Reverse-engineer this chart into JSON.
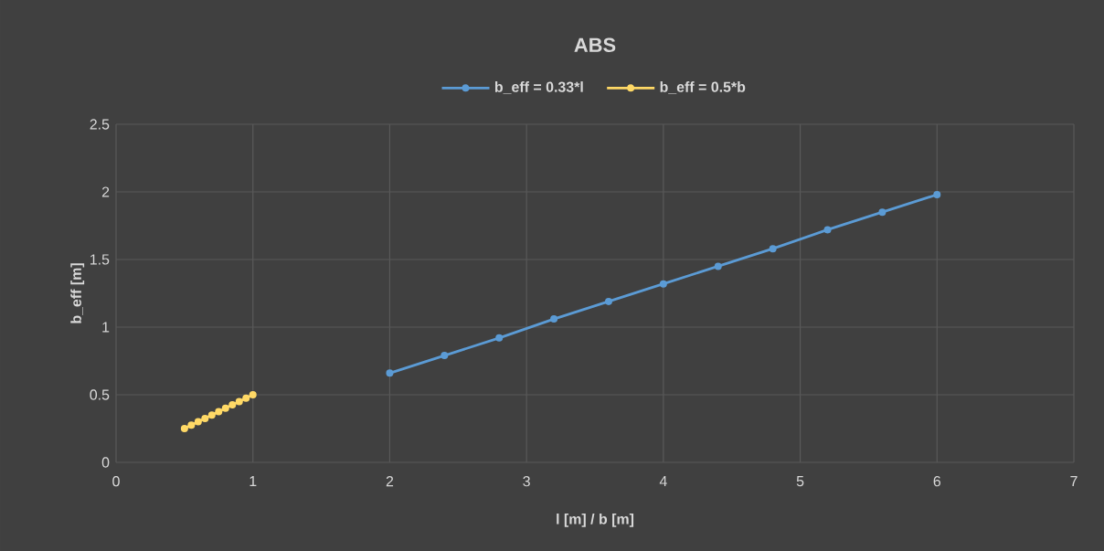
{
  "chart_data": {
    "type": "line",
    "title": "ABS",
    "xlabel": "l [m] / b [m]",
    "ylabel": "b_eff [m]",
    "series": [
      {
        "name": "b_eff = 0.33*l",
        "color": "#5b9bd5",
        "x": [
          2,
          2.4,
          2.8,
          3.2,
          3.6,
          4,
          4.4,
          4.8,
          5.2,
          5.6,
          6
        ],
        "values": [
          0.66,
          0.79,
          0.92,
          1.06,
          1.19,
          1.32,
          1.45,
          1.58,
          1.72,
          1.85,
          1.98
        ]
      },
      {
        "name": "b_eff = 0.5*b",
        "color": "#ffd966",
        "x": [
          0.5,
          0.55,
          0.6,
          0.65,
          0.7,
          0.75,
          0.8,
          0.85,
          0.9,
          0.95,
          1
        ],
        "values": [
          0.25,
          0.275,
          0.3,
          0.325,
          0.35,
          0.375,
          0.4,
          0.425,
          0.45,
          0.475,
          0.5
        ]
      }
    ],
    "xlim": [
      0,
      7
    ],
    "xticks": [
      0,
      1,
      2,
      3,
      4,
      5,
      6,
      7
    ],
    "ylim": [
      0,
      2.5
    ],
    "yticks": [
      0,
      0.5,
      1,
      1.5,
      2,
      2.5
    ],
    "grid": true,
    "legend": "top",
    "marker": "circle",
    "line_style": "solid"
  }
}
